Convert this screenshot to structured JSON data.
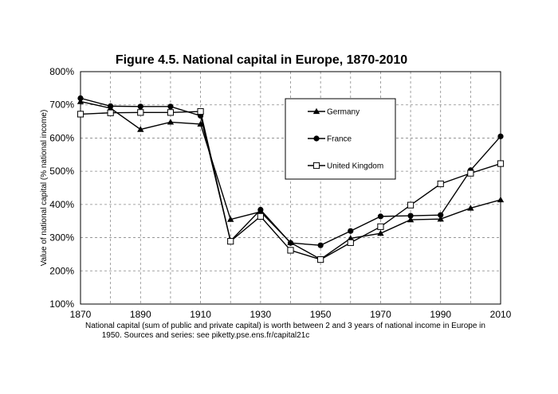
{
  "chart_data": {
    "type": "line",
    "title": "Figure 4.5. National capital in Europe, 1870-2010",
    "ylabel": "Value of national capital (% national income)",
    "xlabel": "",
    "x": [
      1870,
      1880,
      1890,
      1900,
      1910,
      1920,
      1930,
      1940,
      1950,
      1960,
      1970,
      1980,
      1990,
      2000,
      2010
    ],
    "xlim": [
      1870,
      2010
    ],
    "ylim": [
      100,
      800
    ],
    "x_ticks": [
      "1870",
      "1890",
      "1910",
      "1930",
      "1950",
      "1970",
      "1990",
      "2010"
    ],
    "x_tick_values": [
      1870,
      1890,
      1910,
      1930,
      1950,
      1970,
      1990,
      2010
    ],
    "y_ticks": [
      "100%",
      "200%",
      "300%",
      "400%",
      "500%",
      "600%",
      "700%",
      "800%"
    ],
    "y_tick_values": [
      100,
      200,
      300,
      400,
      500,
      600,
      700,
      800
    ],
    "x_grid_values": [
      1870,
      1880,
      1890,
      1900,
      1910,
      1920,
      1930,
      1940,
      1950,
      1960,
      1970,
      1980,
      1990,
      2000,
      2010
    ],
    "grid": true,
    "legend_position": "top-right",
    "series": [
      {
        "name": "Germany",
        "marker": "triangle",
        "values": [
          710,
          690,
          626,
          648,
          642,
          355,
          378,
          285,
          235,
          298,
          313,
          354,
          356,
          389,
          414
        ]
      },
      {
        "name": "France",
        "marker": "circle",
        "values": [
          720,
          696,
          695,
          695,
          667,
          290,
          384,
          284,
          277,
          320,
          364,
          366,
          368,
          503,
          605
        ]
      },
      {
        "name": "United Kingdom",
        "marker": "open-square",
        "values": [
          672,
          676,
          677,
          677,
          680,
          289,
          364,
          262,
          234,
          285,
          333,
          398,
          462,
          494,
          523
        ]
      }
    ],
    "caption_lines": [
      "National capital (sum of public and private capital) is worth between 2 and 3 years of national income in Europe in",
      "1950. Sources and series: see piketty.pse.ens.fr/capital21c"
    ],
    "colors": {
      "line": "#000000",
      "grid": "#888888",
      "background": "#ffffff"
    }
  }
}
